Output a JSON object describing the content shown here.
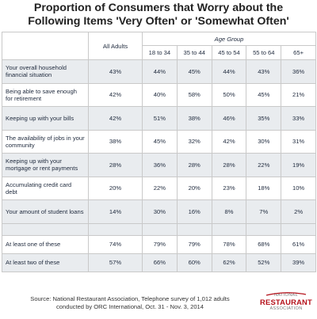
{
  "title": {
    "line1": "Proportion of Consumers that Worry about the",
    "line2": "Following Items 'Very Often' or 'Somewhat Often'"
  },
  "table": {
    "all_adults_header": "All Adults",
    "age_group_header": "Age Group",
    "age_columns": [
      "18 to 34",
      "35 to 44",
      "45 to 54",
      "55 to 64",
      "65+"
    ],
    "rows": [
      {
        "label": "Your overall household financial situation",
        "all": "43%",
        "ages": [
          "44%",
          "45%",
          "44%",
          "43%",
          "36%"
        ]
      },
      {
        "label": "Being able to save enough for retirement",
        "all": "42%",
        "ages": [
          "40%",
          "58%",
          "50%",
          "45%",
          "21%"
        ]
      },
      {
        "label": "Keeping up with your bills",
        "all": "42%",
        "ages": [
          "51%",
          "38%",
          "46%",
          "35%",
          "33%"
        ]
      },
      {
        "label": "The availability of jobs in your community",
        "all": "38%",
        "ages": [
          "45%",
          "32%",
          "42%",
          "30%",
          "31%"
        ]
      },
      {
        "label": "Keeping up with your mortgage or rent payments",
        "all": "28%",
        "ages": [
          "36%",
          "28%",
          "28%",
          "22%",
          "19%"
        ]
      },
      {
        "label": "Accumulating credit card debt",
        "all": "20%",
        "ages": [
          "22%",
          "20%",
          "23%",
          "18%",
          "10%"
        ]
      },
      {
        "label": "Your amount of student loans",
        "all": "14%",
        "ages": [
          "30%",
          "16%",
          "8%",
          "7%",
          "2%"
        ]
      }
    ],
    "summary_rows": [
      {
        "label": "At least one of these",
        "all": "74%",
        "ages": [
          "79%",
          "79%",
          "78%",
          "68%",
          "61%"
        ]
      },
      {
        "label": "At least two of these",
        "all": "57%",
        "ages": [
          "66%",
          "60%",
          "62%",
          "52%",
          "39%"
        ]
      }
    ]
  },
  "source": {
    "line1": "Source: National Restaurant Association, Telephone survey of 1,012 adults",
    "line2": "conducted by ORC International, Oct. 31 - Nov. 3, 2014"
  },
  "logo": {
    "line1": "NATIONAL",
    "line2": "RESTAURANT",
    "line3": "ASSOCIATION"
  },
  "colors": {
    "shaded_row": "#e9ecef",
    "border": "#c9c9c9",
    "logo_red": "#b5121b"
  }
}
